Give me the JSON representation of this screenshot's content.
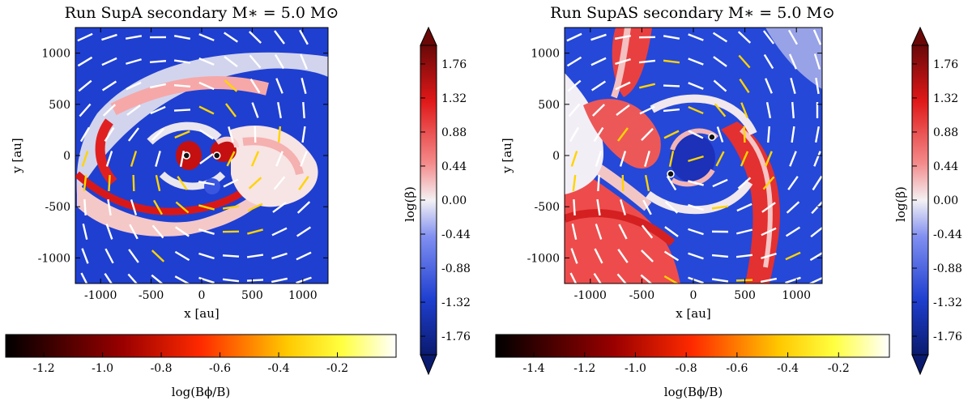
{
  "chart_data": [
    {
      "type": "heatmap",
      "title": "Run SupA  secondary M∗ = 5.0 M⊙",
      "xlabel": "x [au]",
      "ylabel": "y [au]",
      "xlim": [
        -1250,
        1250
      ],
      "ylim": [
        -1250,
        1250
      ],
      "xticks": [
        -1000,
        -500,
        0,
        500,
        1000
      ],
      "yticks": [
        -1000,
        -500,
        0,
        500,
        1000
      ],
      "xtick_labels": [
        "-1000",
        "-500",
        "0",
        "500",
        "1000"
      ],
      "ytick_labels": [
        "-1000",
        "-500",
        "0",
        "500",
        "1000"
      ],
      "colorbar_beta": {
        "label": "log(β)",
        "range": [
          -2.0,
          2.0
        ],
        "ticks": [
          1.76,
          1.32,
          0.88,
          0.44,
          0.0,
          -0.44,
          -0.88,
          -1.32,
          -1.76
        ],
        "tick_labels": [
          "1.76",
          "1.32",
          "0.88",
          "0.44",
          "0.00",
          "-0.44",
          "-0.88",
          "-1.32",
          "-1.76"
        ]
      },
      "colorbar_bphi": {
        "label": "log(Bϕ/B)",
        "range": [
          -1.33,
          0.0
        ],
        "ticks": [
          -1.2,
          -1.0,
          -0.8,
          -0.6,
          -0.4,
          -0.2
        ],
        "tick_labels": [
          "-1.2",
          "-1.0",
          "-0.8",
          "-0.6",
          "-0.4",
          "-0.2"
        ]
      },
      "stars": [
        [
          -150,
          0
        ],
        [
          150,
          0
        ]
      ]
    },
    {
      "type": "heatmap",
      "title": "Run SupAS secondary M∗ = 5.0 M⊙",
      "xlabel": "x [au]",
      "ylabel": "y [au]",
      "xlim": [
        -1250,
        1250
      ],
      "ylim": [
        -1250,
        1250
      ],
      "xticks": [
        -1000,
        -500,
        0,
        500,
        1000
      ],
      "yticks": [
        -1000,
        -500,
        0,
        500,
        1000
      ],
      "xtick_labels": [
        "-1000",
        "-500",
        "0",
        "500",
        "1000"
      ],
      "ytick_labels": [
        "-1000",
        "-500",
        "0",
        "500",
        "1000"
      ],
      "colorbar_beta": {
        "label": "log(β)",
        "range": [
          -2.0,
          2.0
        ],
        "ticks": [
          1.76,
          1.32,
          0.88,
          0.44,
          0.0,
          -0.44,
          -0.88,
          -1.32,
          -1.76
        ],
        "tick_labels": [
          "1.76",
          "1.32",
          "0.88",
          "0.44",
          "0.00",
          "-0.44",
          "-0.88",
          "-1.32",
          "-1.76"
        ]
      },
      "colorbar_bphi": {
        "label": "log(Bϕ/B)",
        "range": [
          -1.55,
          0.0
        ],
        "ticks": [
          -1.4,
          -1.2,
          -1.0,
          -0.8,
          -0.6,
          -0.4,
          -0.2
        ],
        "tick_labels": [
          "-1.4",
          "-1.2",
          "-1.0",
          "-0.8",
          "-0.6",
          "-0.4",
          "-0.2"
        ]
      },
      "stars": [
        [
          -220,
          -180
        ],
        [
          180,
          180
        ]
      ]
    }
  ]
}
